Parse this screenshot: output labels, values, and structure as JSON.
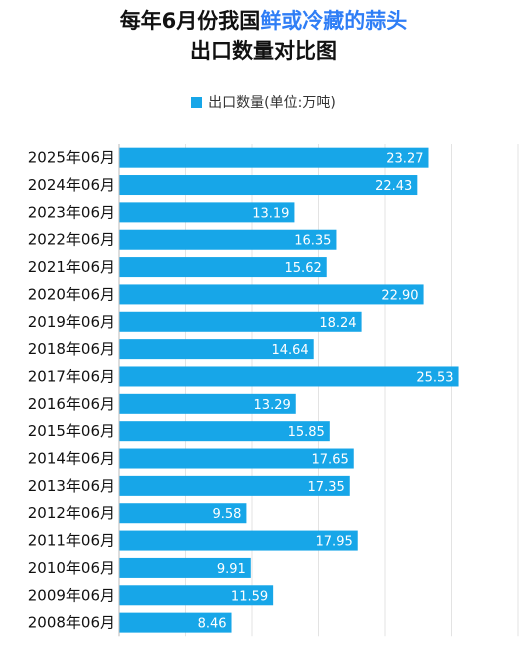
{
  "title": {
    "line1_prefix": "每年6月份我国",
    "line1_highlight": "鲜或冷藏的蒜头",
    "line2": "出口数量对比图"
  },
  "colors": {
    "bar": "#17a6e8",
    "title_highlight": "#2f7ef6",
    "grid": "#e3e3e3"
  },
  "chart_data": {
    "type": "bar",
    "orientation": "horizontal",
    "title": "每年6月份我国鲜或冷藏的蒜头出口数量对比图",
    "xlabel": "",
    "ylabel": "",
    "legend": {
      "position": "top",
      "entries": [
        "出口数量(单位:万吨)"
      ]
    },
    "grid": true,
    "xlim": [
      0,
      30
    ],
    "categories": [
      "2025年06月",
      "2024年06月",
      "2023年06月",
      "2022年06月",
      "2021年06月",
      "2020年06月",
      "2019年06月",
      "2018年06月",
      "2017年06月",
      "2016年06月",
      "2015年06月",
      "2014年06月",
      "2013年06月",
      "2012年06月",
      "2011年06月",
      "2010年06月",
      "2009年06月",
      "2008年06月"
    ],
    "series": [
      {
        "name": "出口数量(单位:万吨)",
        "values": [
          23.27,
          22.43,
          13.19,
          16.35,
          15.62,
          22.9,
          18.24,
          14.64,
          25.53,
          13.29,
          15.85,
          17.65,
          17.35,
          9.58,
          17.95,
          9.91,
          11.59,
          8.46
        ]
      }
    ]
  }
}
